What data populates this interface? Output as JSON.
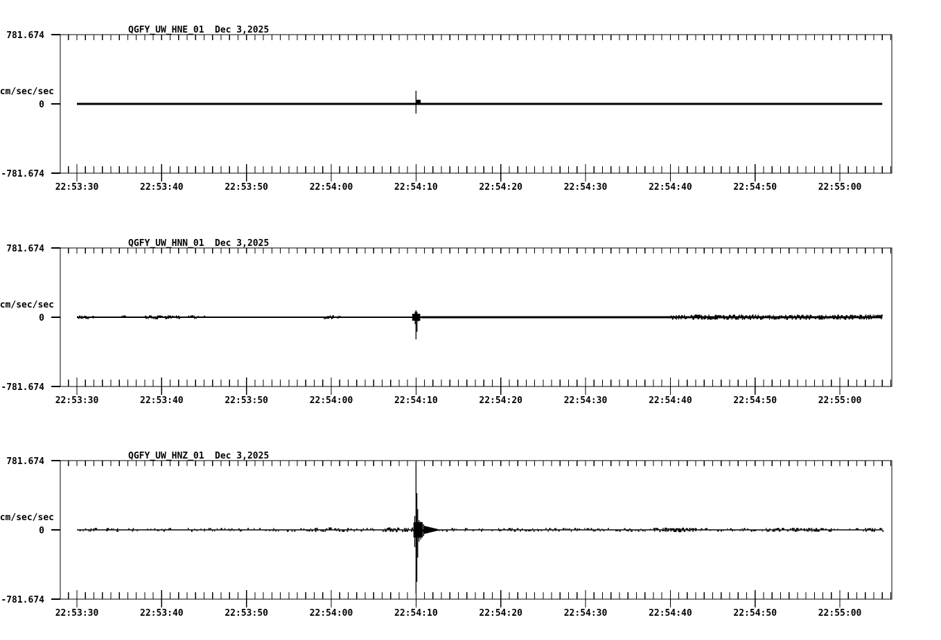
{
  "page": {
    "background": "#ffffff",
    "ink": "#000000"
  },
  "chart_data": {
    "type": "line",
    "figure": "three-channel strong-motion seismogram",
    "date_label": "Dec 3,2025",
    "y_axis": {
      "unit_label": "cm/sec/sec",
      "max_label": "781.674",
      "zero_label": "0",
      "min_label": "-781.674",
      "ylim": [
        -781.674,
        781.674
      ]
    },
    "x_axis": {
      "ref_time": "22:53:00",
      "window_start_s": 28.04,
      "window_end_s": 126.12,
      "trace_start_s": 30,
      "trace_end_s": 125,
      "minor_tick_s": 1,
      "major_tick_s": 10,
      "ticks": [
        {
          "t": 30,
          "label": "22:53:30"
        },
        {
          "t": 40,
          "label": "22:53:40"
        },
        {
          "t": 50,
          "label": "22:53:50"
        },
        {
          "t": 60,
          "label": "22:54:00"
        },
        {
          "t": 70,
          "label": "22:54:10"
        },
        {
          "t": 80,
          "label": "22:54:20"
        },
        {
          "t": 90,
          "label": "22:54:30"
        },
        {
          "t": 100,
          "label": "22:54:40"
        },
        {
          "t": 110,
          "label": "22:54:50"
        },
        {
          "t": 120,
          "label": "22:55:00"
        }
      ]
    },
    "event_time": "22:54:10",
    "panels": [
      {
        "channel": "HNE",
        "title_station": "QGFY_UW_HNE_01",
        "title_date": "Dec 3,2025",
        "baseline_value": 0,
        "seed": 7,
        "thickness_before_px": 3,
        "thickness_after_px": 3,
        "spike_end_t": 70.6,
        "spikes": [
          {
            "t": 70.0,
            "up": 149,
            "down": 109
          }
        ],
        "blob": {
          "t0": 70.05,
          "t1": 70.55,
          "amp_up": 47,
          "amp_down": 8
        },
        "coda": null,
        "noise_patches": []
      },
      {
        "channel": "HNN",
        "title_station": "QGFY_UW_HNN_01",
        "title_date": "Dec 3,2025",
        "baseline_value": 0,
        "seed": 13,
        "thickness_before_px": 2,
        "thickness_after_px": 3,
        "spike_end_t": 70.6,
        "spikes": [
          {
            "t": 69.75,
            "up": 31,
            "down": 39
          },
          {
            "t": 69.9,
            "up": 63,
            "down": 78
          },
          {
            "t": 70.0,
            "up": 78,
            "down": 250
          },
          {
            "t": 70.12,
            "up": 63,
            "down": 164
          },
          {
            "t": 70.28,
            "up": 39,
            "down": 47
          },
          {
            "t": 70.45,
            "up": 23,
            "down": 31
          }
        ],
        "blob": {
          "t0": 69.55,
          "t1": 70.5,
          "amp_up": 39,
          "amp_down": 39
        },
        "coda": null,
        "noise_patches": [
          {
            "t0": 30,
            "t1": 32,
            "density": 0.5,
            "amp": 16
          },
          {
            "t0": 35,
            "t1": 36,
            "density": 0.3,
            "amp": 16
          },
          {
            "t0": 38,
            "t1": 42,
            "density": 0.6,
            "amp": 16
          },
          {
            "t0": 43,
            "t1": 45,
            "density": 0.4,
            "amp": 16
          },
          {
            "t0": 59,
            "t1": 61,
            "density": 0.5,
            "amp": 16
          },
          {
            "t0": 100,
            "t1": 125,
            "density": 0.5,
            "amp": 20
          }
        ]
      },
      {
        "channel": "HNZ",
        "title_station": "QGFY_UW_HNZ_01",
        "title_date": "Dec 3,2025",
        "baseline_value": 0,
        "seed": 42,
        "thickness_before_px": 1.5,
        "thickness_after_px": 1.5,
        "spike_end_t": 70.9,
        "spikes": [
          {
            "t": 69.85,
            "up": 156,
            "down": 195
          },
          {
            "t": 70.0,
            "up": 774,
            "down": 719
          },
          {
            "t": 70.1,
            "up": 414,
            "down": 586
          },
          {
            "t": 70.2,
            "up": 234,
            "down": 313
          },
          {
            "t": 70.35,
            "up": 109,
            "down": 133
          },
          {
            "t": 70.55,
            "up": 94,
            "down": 109
          },
          {
            "t": 70.9,
            "up": 63,
            "down": 70
          }
        ],
        "blob": {
          "t0": 69.7,
          "t1": 70.8,
          "amp_up": 86,
          "amp_down": 86
        },
        "coda": {
          "t0": 70.9,
          "t1": 72.6,
          "amp_start": 47,
          "amp_end": 8
        },
        "noise_patches": [
          {
            "t0": 30,
            "t1": 125,
            "density": 0.22,
            "amp": 18
          },
          {
            "t0": 58,
            "t1": 60,
            "density": 0.5,
            "amp": 24
          },
          {
            "t0": 66,
            "t1": 69.5,
            "density": 0.6,
            "amp": 24
          },
          {
            "t0": 98,
            "t1": 103,
            "density": 0.6,
            "amp": 22
          },
          {
            "t0": 112,
            "t1": 118,
            "density": 0.4,
            "amp": 20
          }
        ]
      }
    ]
  }
}
